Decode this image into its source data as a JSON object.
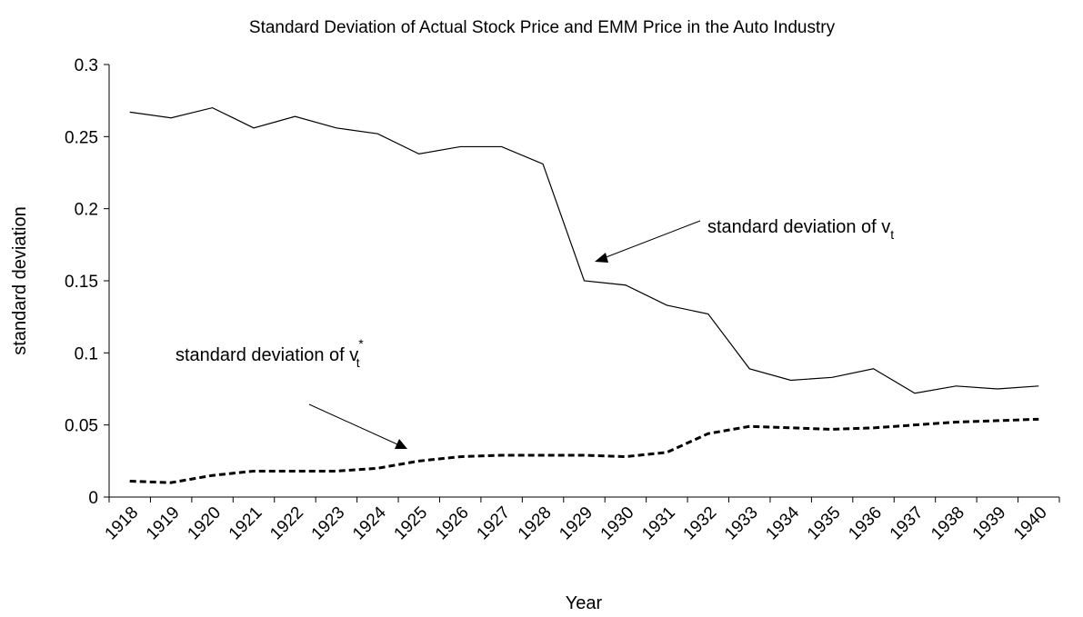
{
  "chart_data": {
    "type": "line",
    "title": "Standard Deviation of Actual Stock Price and EMM Price in the Auto Industry",
    "xlabel": "Year",
    "ylabel": "standard deviation",
    "categories": [
      "1918",
      "1919",
      "1920",
      "1921",
      "1922",
      "1923",
      "1924",
      "1925",
      "1926",
      "1927",
      "1928",
      "1929",
      "1930",
      "1931",
      "1932",
      "1933",
      "1934",
      "1935",
      "1936",
      "1937",
      "1938",
      "1939",
      "1940"
    ],
    "series": [
      {
        "color": "#000000",
        "style": "solid",
        "values": [
          0.267,
          0.263,
          0.27,
          0.256,
          0.264,
          0.256,
          0.252,
          0.238,
          0.243,
          0.243,
          0.231,
          0.15,
          0.147,
          0.133,
          0.127,
          0.089,
          0.081,
          0.083,
          0.089,
          0.072,
          0.077,
          0.075,
          0.077
        ]
      },
      {
        "color": "#000000",
        "style": "dashed",
        "values": [
          0.011,
          0.01,
          0.015,
          0.018,
          0.018,
          0.018,
          0.02,
          0.025,
          0.028,
          0.029,
          0.029,
          0.029,
          0.028,
          0.031,
          0.044,
          0.049,
          0.048,
          0.047,
          0.048,
          0.05,
          0.052,
          0.053,
          0.054
        ]
      }
    ],
    "annotations": [
      {
        "text": "standard deviation of v",
        "sub": "t"
      },
      {
        "text": "standard deviation of v",
        "sup": "*",
        "sub": "t"
      }
    ],
    "ylim": [
      0,
      0.3
    ],
    "yticks": [
      0,
      0.05,
      0.1,
      0.15,
      0.2,
      0.25,
      0.3
    ],
    "grid": false
  }
}
